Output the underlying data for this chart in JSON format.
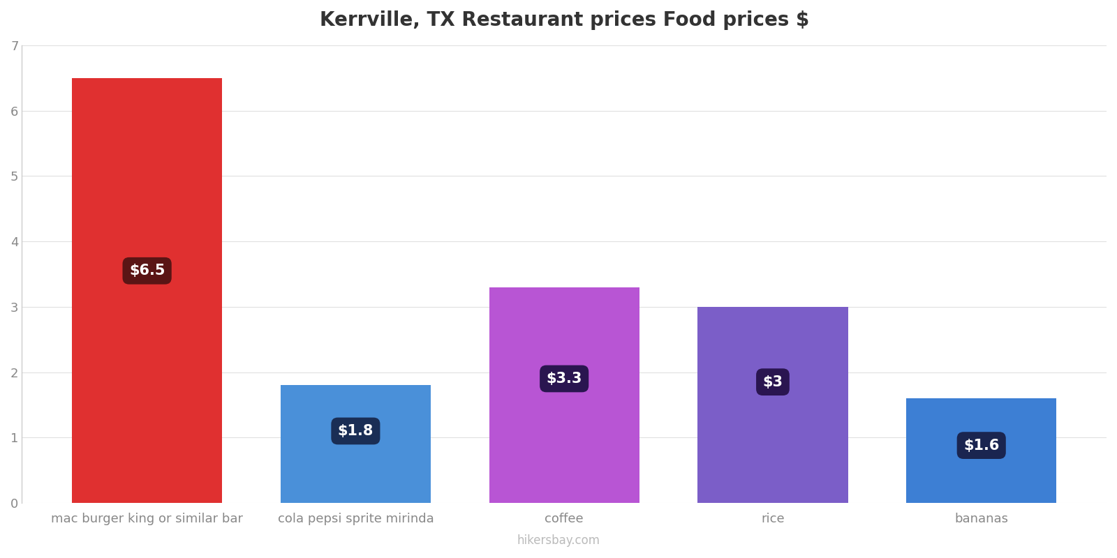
{
  "title": "Kerrville, TX Restaurant prices Food prices $",
  "categories": [
    "mac burger king or similar bar",
    "cola pepsi sprite mirinda",
    "coffee",
    "rice",
    "bananas"
  ],
  "values": [
    6.5,
    1.8,
    3.3,
    3.0,
    1.6
  ],
  "bar_colors": [
    "#e03030",
    "#4a90d9",
    "#b855d4",
    "#7b5ec8",
    "#3d7fd4"
  ],
  "label_texts": [
    "$6.5",
    "$1.8",
    "$3.3",
    "$3",
    "$1.6"
  ],
  "label_box_colors": [
    "#5a1515",
    "#1a2e55",
    "#2a1550",
    "#2a1550",
    "#1a2550"
  ],
  "ylim": [
    0,
    7
  ],
  "yticks": [
    0,
    1,
    2,
    3,
    4,
    5,
    6,
    7
  ],
  "title_fontsize": 20,
  "tick_fontsize": 13,
  "watermark": "hikersbay.com",
  "background_color": "#ffffff",
  "label_fontsize": 15,
  "label_y_positions": [
    3.55,
    1.1,
    1.9,
    1.85,
    0.88
  ]
}
